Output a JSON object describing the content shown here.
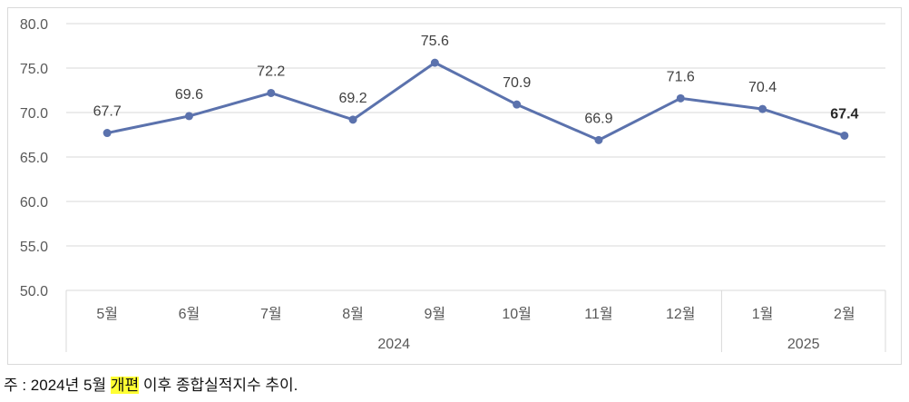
{
  "chart_data": {
    "type": "line",
    "categories": [
      "5월",
      "6월",
      "7월",
      "8월",
      "9월",
      "10월",
      "11월",
      "12월",
      "1월",
      "2월"
    ],
    "groups": [
      {
        "label": "2024",
        "categories": [
          "5월",
          "6월",
          "7월",
          "8월",
          "9월",
          "10월",
          "11월",
          "12월"
        ]
      },
      {
        "label": "2025",
        "categories": [
          "1월",
          "2월"
        ]
      }
    ],
    "series": [
      {
        "values": [
          67.7,
          69.6,
          72.2,
          69.2,
          75.6,
          70.9,
          66.9,
          71.6,
          70.4,
          67.4
        ]
      }
    ],
    "value_labels": [
      "67.7",
      "69.6",
      "72.2",
      "69.2",
      "75.6",
      "70.9",
      "66.9",
      "71.6",
      "70.4",
      "67.4"
    ],
    "yticks": [
      "50.0",
      "55.0",
      "60.0",
      "65.0",
      "70.0",
      "75.0",
      "80.0"
    ],
    "ylim": [
      50,
      80
    ],
    "grid": true,
    "line_color": "#5b72ad",
    "title": "",
    "xlabel": "",
    "ylabel": ""
  },
  "footnote": {
    "prefix": "주 : 2024년 5월 ",
    "highlight": "개편",
    "suffix": " 이후 종합실적지수 추이."
  }
}
